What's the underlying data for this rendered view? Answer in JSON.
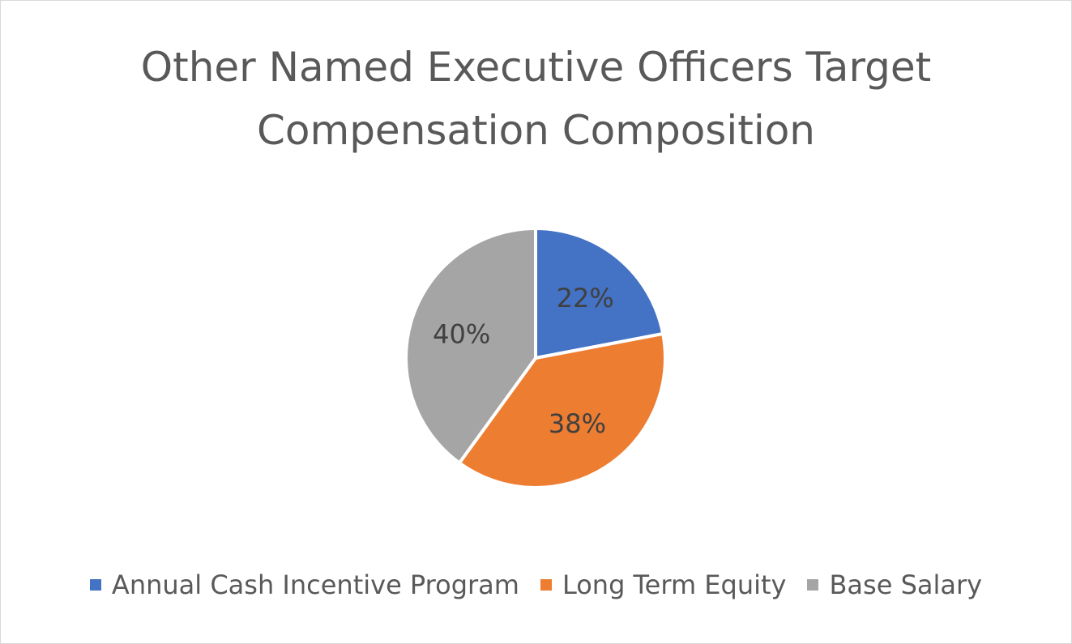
{
  "chart_data": {
    "type": "pie",
    "title_lines": [
      "Other Named Executive Officers Target",
      "Compensation Composition"
    ],
    "slices": [
      {
        "label": "Annual Cash Incentive Program",
        "value": 22,
        "display": "22%",
        "color": "#4472C4"
      },
      {
        "label": "Long Term Equity",
        "value": 38,
        "display": "38%",
        "color": "#ED7D31"
      },
      {
        "label": "Base Salary",
        "value": 40,
        "display": "40%",
        "color": "#A5A5A5"
      }
    ],
    "legend_position": "bottom",
    "label_color": "#404040"
  }
}
